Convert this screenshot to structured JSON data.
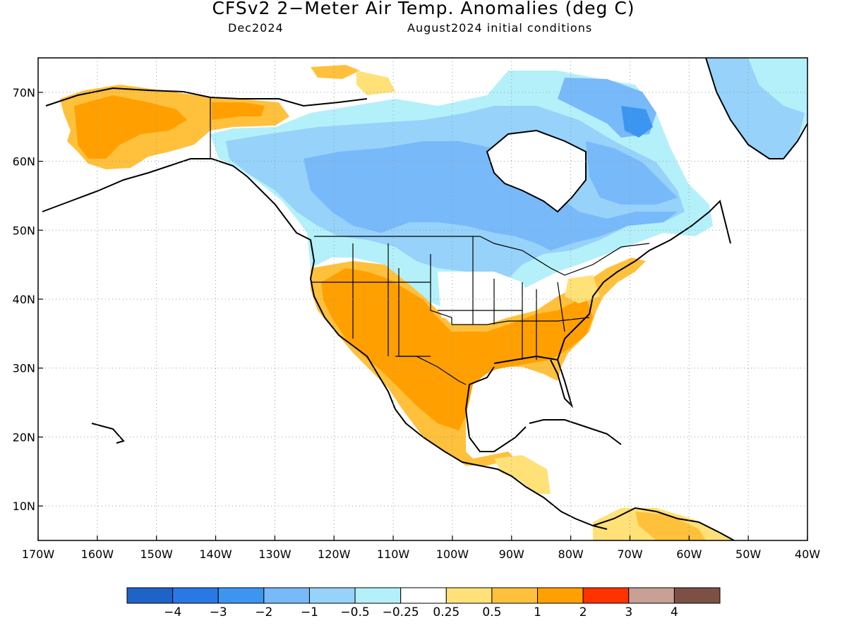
{
  "title": "CFSv2 2−Meter Air Temp. Anomalies (deg C)",
  "month": "Dec2024",
  "initial_conditions": "August2024 initial conditions",
  "map": {
    "lon_range": [
      -170,
      -40
    ],
    "lat_range": [
      5,
      75
    ],
    "lat_ticks": [
      {
        "value": 70,
        "label": "70N"
      },
      {
        "value": 60,
        "label": "60N"
      },
      {
        "value": 50,
        "label": "50N"
      },
      {
        "value": 40,
        "label": "40N"
      },
      {
        "value": 30,
        "label": "30N"
      },
      {
        "value": 20,
        "label": "20N"
      },
      {
        "value": 10,
        "label": "10N"
      }
    ],
    "lon_ticks": [
      {
        "value": -170,
        "label": "170W"
      },
      {
        "value": -160,
        "label": "160W"
      },
      {
        "value": -150,
        "label": "150W"
      },
      {
        "value": -140,
        "label": "140W"
      },
      {
        "value": -130,
        "label": "130W"
      },
      {
        "value": -120,
        "label": "120W"
      },
      {
        "value": -110,
        "label": "110W"
      },
      {
        "value": -100,
        "label": "100W"
      },
      {
        "value": -90,
        "label": "90W"
      },
      {
        "value": -80,
        "label": "80W"
      },
      {
        "value": -70,
        "label": "70W"
      },
      {
        "value": -60,
        "label": "60W"
      },
      {
        "value": -50,
        "label": "50W"
      },
      {
        "value": -40,
        "label": "40W"
      }
    ],
    "grid": "dotted"
  },
  "colorbar": {
    "colors": [
      "#1e64c8",
      "#2878e6",
      "#3c96f0",
      "#78b9fa",
      "#96d2fa",
      "#b4f0fa",
      "#ffffff",
      "#ffe178",
      "#ffc03c",
      "#ffa000",
      "#ff3200",
      "#c8a096",
      "#7d5046"
    ],
    "labels": [
      "−4",
      "−3",
      "−2",
      "−1",
      "−0.5",
      "−0.25",
      "0.25",
      "0.5",
      "1",
      "2",
      "3",
      "4"
    ]
  },
  "colors": {
    "warm_light": "#ffe178",
    "warm_mid": "#ffc03c",
    "warm_strong": "#ffa000",
    "cool_light": "#b4f0fa",
    "cool_mid": "#96d2fa",
    "cool_strong": "#78b9fa",
    "cool_deep": "#3c96f0"
  }
}
